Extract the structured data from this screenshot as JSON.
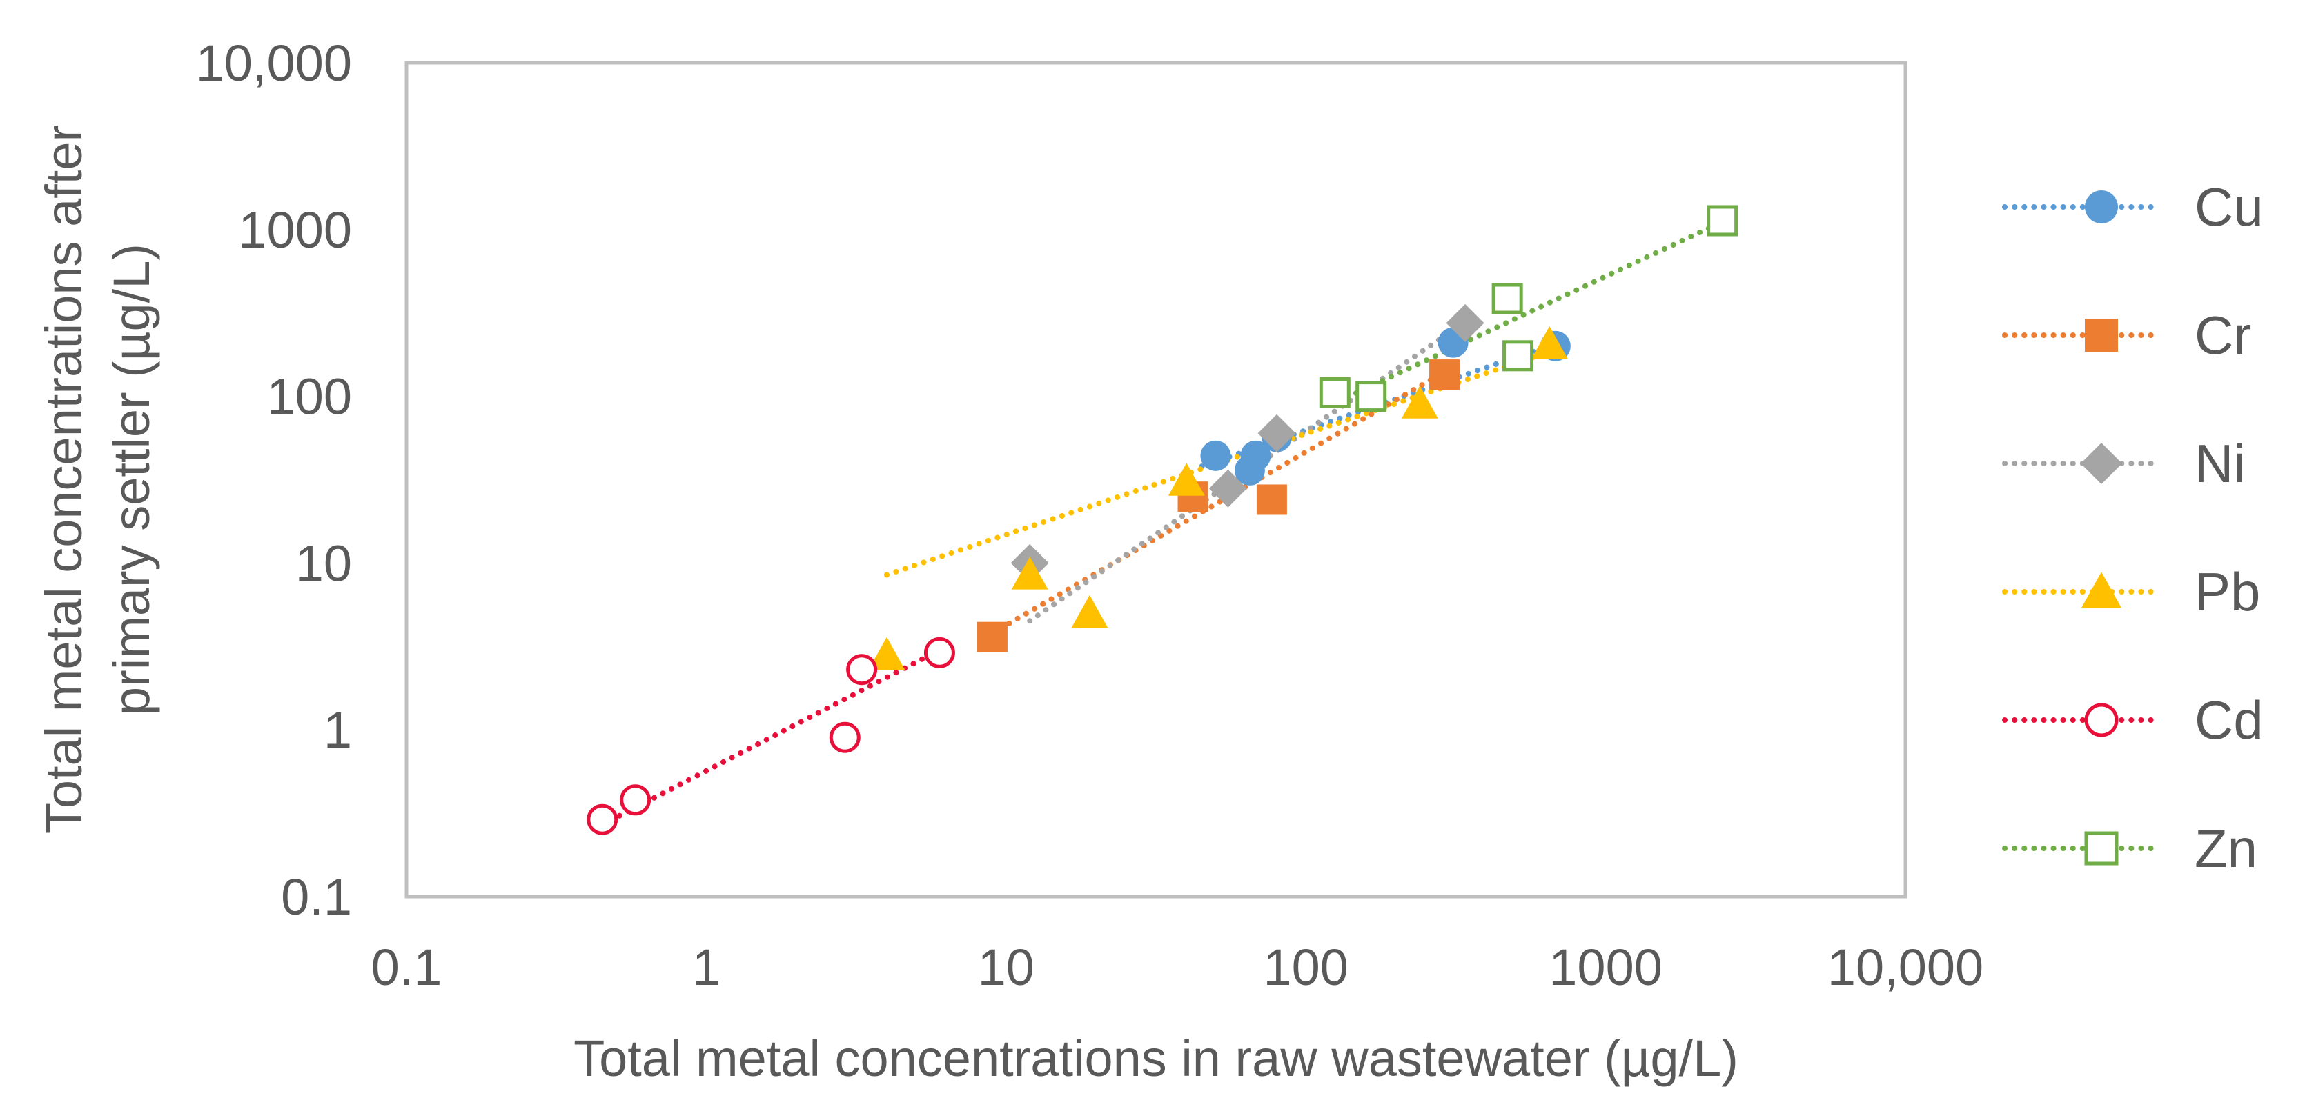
{
  "chart_data": {
    "type": "scatter",
    "xscale": "log",
    "yscale": "log",
    "xlabel": "Total metal concentrations in raw wastewater (µg/L)",
    "ylabel_line1": "Total metal concentrations after",
    "ylabel_line2": "primary settler (µg/L)",
    "xlim": [
      0.1,
      10000
    ],
    "ylim": [
      0.1,
      10000
    ],
    "x_ticks": [
      {
        "value": 0.1,
        "label": "0.1"
      },
      {
        "value": 1,
        "label": "1"
      },
      {
        "value": 10,
        "label": "10"
      },
      {
        "value": 100,
        "label": "100"
      },
      {
        "value": 1000,
        "label": "1000"
      },
      {
        "value": 10000,
        "label": "10,000"
      }
    ],
    "y_ticks": [
      {
        "value": 0.1,
        "label": "0.1"
      },
      {
        "value": 1,
        "label": "1"
      },
      {
        "value": 10,
        "label": "10"
      },
      {
        "value": 100,
        "label": "100"
      },
      {
        "value": 1000,
        "label": "1000"
      },
      {
        "value": 10000,
        "label": "10,000"
      }
    ],
    "legend_position": "right",
    "series": [
      {
        "name": "Cu",
        "marker": "circle",
        "color": "#5B9BD5",
        "points": [
          [
            50,
            44
          ],
          [
            65,
            36
          ],
          [
            68,
            44
          ],
          [
            80,
            57
          ],
          [
            310,
            210
          ],
          [
            680,
            200
          ]
        ],
        "trendline": [
          [
            45,
            38
          ],
          [
            720,
            215
          ]
        ]
      },
      {
        "name": "Cr",
        "marker": "square",
        "color": "#ED7D31",
        "points": [
          [
            9,
            3.6
          ],
          [
            42,
            25
          ],
          [
            77,
            24
          ],
          [
            290,
            135
          ]
        ],
        "trendline": [
          [
            9,
            3.8
          ],
          [
            310,
            150
          ]
        ]
      },
      {
        "name": "Ni",
        "marker": "diamond",
        "color": "#A5A5A5",
        "points": [
          [
            12,
            10
          ],
          [
            55,
            28
          ],
          [
            80,
            60
          ],
          [
            340,
            275
          ]
        ],
        "trendline": [
          [
            12,
            4.5
          ],
          [
            350,
            290
          ]
        ]
      },
      {
        "name": "Pb",
        "marker": "triangle",
        "color": "#FFC000",
        "points": [
          [
            4,
            2.8
          ],
          [
            12,
            8.5
          ],
          [
            19,
            5
          ],
          [
            40,
            31
          ],
          [
            240,
            90
          ],
          [
            650,
            205
          ]
        ],
        "trendline": [
          [
            4,
            8.5
          ],
          [
            680,
            190
          ]
        ]
      },
      {
        "name": "Cd",
        "marker": "circle-open",
        "color": "#E8103A",
        "points": [
          [
            0.45,
            0.29
          ],
          [
            0.58,
            0.38
          ],
          [
            2.9,
            0.9
          ],
          [
            3.3,
            2.3
          ],
          [
            6,
            2.9
          ]
        ],
        "trendline": [
          [
            0.45,
            0.27
          ],
          [
            6.2,
            3.1
          ]
        ]
      },
      {
        "name": "Zn",
        "marker": "square-open",
        "color": "#70AD47",
        "points": [
          [
            125,
            105
          ],
          [
            165,
            100
          ],
          [
            470,
            385
          ],
          [
            510,
            175
          ],
          [
            2450,
            1130
          ]
        ],
        "trendline": [
          [
            120,
            88
          ],
          [
            2500,
            1130
          ]
        ]
      }
    ]
  }
}
